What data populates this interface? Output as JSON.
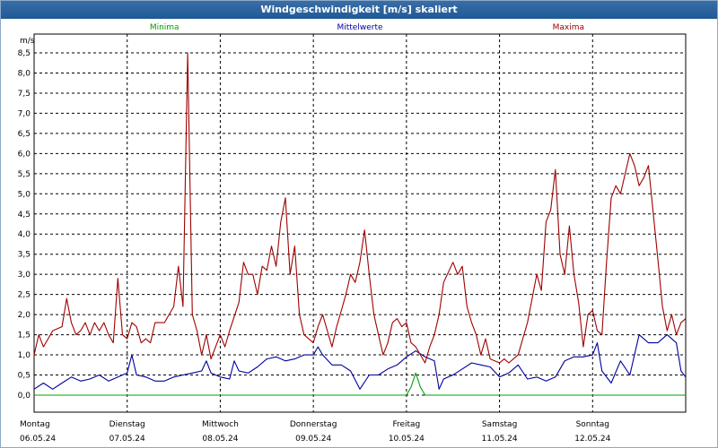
{
  "title": "Windgeschwindigkeit [m/s] skaliert",
  "chart_data": {
    "type": "line",
    "unit_label": "m/s",
    "ylim": [
      -0.2,
      8.8
    ],
    "y_ticks": [
      "0,0",
      "0,5",
      "1,0",
      "1,5",
      "2,0",
      "2,5",
      "3,0",
      "3,5",
      "4,0",
      "4,5",
      "5,0",
      "5,5",
      "6,0",
      "6,5",
      "7,0",
      "7,5",
      "8,0",
      "8,5"
    ],
    "x_days": [
      {
        "day": "Montag",
        "date": "06.05.24"
      },
      {
        "day": "Dienstag",
        "date": "07.05.24"
      },
      {
        "day": "Mittwoch",
        "date": "08.05.24"
      },
      {
        "day": "Donnerstag",
        "date": "09.05.24"
      },
      {
        "day": "Freitag",
        "date": "10.05.24"
      },
      {
        "day": "Samstag",
        "date": "11.05.24"
      },
      {
        "day": "Sonntag",
        "date": "12.05.24"
      }
    ],
    "grid": true,
    "series": [
      {
        "name": "Minima",
        "color": "#00a000",
        "points": [
          [
            0,
            0
          ],
          [
            4.0,
            0
          ],
          [
            4.05,
            0.2
          ],
          [
            4.1,
            0.55
          ],
          [
            4.15,
            0.2
          ],
          [
            4.2,
            0
          ],
          [
            7.0,
            0
          ]
        ]
      },
      {
        "name": "Mittelwerte",
        "color": "#0000a0",
        "points": [
          [
            0,
            0.15
          ],
          [
            0.1,
            0.3
          ],
          [
            0.2,
            0.15
          ],
          [
            0.3,
            0.3
          ],
          [
            0.4,
            0.45
          ],
          [
            0.5,
            0.35
          ],
          [
            0.6,
            0.4
          ],
          [
            0.7,
            0.5
          ],
          [
            0.8,
            0.35
          ],
          [
            0.9,
            0.45
          ],
          [
            1.0,
            0.55
          ],
          [
            1.05,
            1.0
          ],
          [
            1.1,
            0.5
          ],
          [
            1.2,
            0.45
          ],
          [
            1.3,
            0.35
          ],
          [
            1.4,
            0.35
          ],
          [
            1.5,
            0.45
          ],
          [
            1.6,
            0.5
          ],
          [
            1.7,
            0.55
          ],
          [
            1.8,
            0.6
          ],
          [
            1.85,
            0.85
          ],
          [
            1.9,
            0.55
          ],
          [
            2.0,
            0.45
          ],
          [
            2.1,
            0.4
          ],
          [
            2.15,
            0.85
          ],
          [
            2.2,
            0.6
          ],
          [
            2.3,
            0.55
          ],
          [
            2.4,
            0.7
          ],
          [
            2.5,
            0.9
          ],
          [
            2.6,
            0.95
          ],
          [
            2.7,
            0.85
          ],
          [
            2.8,
            0.9
          ],
          [
            2.9,
            1.0
          ],
          [
            3.0,
            1.0
          ],
          [
            3.05,
            1.2
          ],
          [
            3.1,
            1.0
          ],
          [
            3.2,
            0.75
          ],
          [
            3.3,
            0.75
          ],
          [
            3.4,
            0.6
          ],
          [
            3.5,
            0.15
          ],
          [
            3.6,
            0.5
          ],
          [
            3.7,
            0.5
          ],
          [
            3.8,
            0.65
          ],
          [
            3.9,
            0.75
          ],
          [
            4.0,
            0.95
          ],
          [
            4.1,
            1.1
          ],
          [
            4.2,
            0.95
          ],
          [
            4.3,
            0.85
          ],
          [
            4.35,
            0.15
          ],
          [
            4.4,
            0.4
          ],
          [
            4.5,
            0.5
          ],
          [
            4.6,
            0.65
          ],
          [
            4.7,
            0.8
          ],
          [
            4.8,
            0.75
          ],
          [
            4.9,
            0.7
          ],
          [
            5.0,
            0.45
          ],
          [
            5.1,
            0.55
          ],
          [
            5.2,
            0.75
          ],
          [
            5.3,
            0.4
          ],
          [
            5.4,
            0.45
          ],
          [
            5.5,
            0.35
          ],
          [
            5.6,
            0.45
          ],
          [
            5.7,
            0.85
          ],
          [
            5.8,
            0.95
          ],
          [
            5.9,
            0.95
          ],
          [
            6.0,
            1.0
          ],
          [
            6.05,
            1.3
          ],
          [
            6.1,
            0.6
          ],
          [
            6.2,
            0.3
          ],
          [
            6.3,
            0.85
          ],
          [
            6.4,
            0.5
          ],
          [
            6.5,
            1.5
          ],
          [
            6.6,
            1.3
          ],
          [
            6.7,
            1.3
          ],
          [
            6.8,
            1.5
          ],
          [
            6.9,
            1.3
          ],
          [
            6.95,
            0.6
          ],
          [
            7.0,
            0.45
          ]
        ]
      },
      {
        "name": "Maxima",
        "color": "#a00000",
        "points": [
          [
            0,
            1.0
          ],
          [
            0.05,
            1.5
          ],
          [
            0.1,
            1.2
          ],
          [
            0.15,
            1.4
          ],
          [
            0.2,
            1.6
          ],
          [
            0.3,
            1.7
          ],
          [
            0.35,
            2.4
          ],
          [
            0.4,
            1.8
          ],
          [
            0.45,
            1.5
          ],
          [
            0.5,
            1.6
          ],
          [
            0.55,
            1.8
          ],
          [
            0.6,
            1.5
          ],
          [
            0.65,
            1.8
          ],
          [
            0.7,
            1.6
          ],
          [
            0.75,
            1.8
          ],
          [
            0.8,
            1.5
          ],
          [
            0.85,
            1.3
          ],
          [
            0.9,
            2.9
          ],
          [
            0.95,
            1.5
          ],
          [
            1.0,
            1.4
          ],
          [
            1.05,
            1.8
          ],
          [
            1.1,
            1.7
          ],
          [
            1.15,
            1.3
          ],
          [
            1.2,
            1.4
          ],
          [
            1.25,
            1.3
          ],
          [
            1.3,
            1.8
          ],
          [
            1.4,
            1.8
          ],
          [
            1.5,
            2.2
          ],
          [
            1.55,
            3.2
          ],
          [
            1.6,
            2.2
          ],
          [
            1.65,
            8.5
          ],
          [
            1.7,
            2.0
          ],
          [
            1.75,
            1.6
          ],
          [
            1.8,
            1.0
          ],
          [
            1.85,
            1.5
          ],
          [
            1.9,
            0.9
          ],
          [
            1.95,
            1.2
          ],
          [
            2.0,
            1.5
          ],
          [
            2.05,
            1.2
          ],
          [
            2.1,
            1.6
          ],
          [
            2.2,
            2.3
          ],
          [
            2.25,
            3.3
          ],
          [
            2.3,
            3.0
          ],
          [
            2.35,
            3.0
          ],
          [
            2.4,
            2.5
          ],
          [
            2.45,
            3.2
          ],
          [
            2.5,
            3.1
          ],
          [
            2.55,
            3.7
          ],
          [
            2.6,
            3.2
          ],
          [
            2.65,
            4.3
          ],
          [
            2.7,
            4.9
          ],
          [
            2.75,
            3.0
          ],
          [
            2.8,
            3.7
          ],
          [
            2.85,
            2.0
          ],
          [
            2.9,
            1.5
          ],
          [
            3.0,
            1.3
          ],
          [
            3.05,
            1.7
          ],
          [
            3.1,
            2.0
          ],
          [
            3.2,
            1.2
          ],
          [
            3.25,
            1.7
          ],
          [
            3.3,
            2.1
          ],
          [
            3.35,
            2.5
          ],
          [
            3.4,
            3.0
          ],
          [
            3.45,
            2.8
          ],
          [
            3.5,
            3.3
          ],
          [
            3.55,
            4.1
          ],
          [
            3.6,
            3.0
          ],
          [
            3.65,
            2.0
          ],
          [
            3.7,
            1.5
          ],
          [
            3.75,
            1.0
          ],
          [
            3.8,
            1.3
          ],
          [
            3.85,
            1.8
          ],
          [
            3.9,
            1.9
          ],
          [
            3.95,
            1.7
          ],
          [
            4.0,
            1.8
          ],
          [
            4.05,
            1.3
          ],
          [
            4.1,
            1.2
          ],
          [
            4.2,
            0.8
          ],
          [
            4.25,
            1.2
          ],
          [
            4.3,
            1.5
          ],
          [
            4.35,
            2.0
          ],
          [
            4.4,
            2.8
          ],
          [
            4.5,
            3.3
          ],
          [
            4.55,
            3.0
          ],
          [
            4.6,
            3.2
          ],
          [
            4.65,
            2.2
          ],
          [
            4.7,
            1.8
          ],
          [
            4.75,
            1.5
          ],
          [
            4.8,
            1.0
          ],
          [
            4.85,
            1.4
          ],
          [
            4.9,
            0.9
          ],
          [
            5.0,
            0.8
          ],
          [
            5.05,
            0.9
          ],
          [
            5.1,
            0.8
          ],
          [
            5.2,
            1.0
          ],
          [
            5.3,
            1.8
          ],
          [
            5.4,
            3.0
          ],
          [
            5.45,
            2.6
          ],
          [
            5.5,
            4.3
          ],
          [
            5.55,
            4.6
          ],
          [
            5.6,
            5.6
          ],
          [
            5.65,
            3.5
          ],
          [
            5.7,
            3.0
          ],
          [
            5.75,
            4.2
          ],
          [
            5.8,
            3.0
          ],
          [
            5.85,
            2.3
          ],
          [
            5.9,
            1.2
          ],
          [
            5.95,
            2.0
          ],
          [
            6.0,
            2.1
          ],
          [
            6.05,
            1.6
          ],
          [
            6.1,
            1.5
          ],
          [
            6.15,
            3.3
          ],
          [
            6.2,
            4.9
          ],
          [
            6.25,
            5.2
          ],
          [
            6.3,
            5.0
          ],
          [
            6.35,
            5.5
          ],
          [
            6.4,
            6.0
          ],
          [
            6.45,
            5.7
          ],
          [
            6.5,
            5.2
          ],
          [
            6.55,
            5.4
          ],
          [
            6.6,
            5.7
          ],
          [
            6.7,
            3.4
          ],
          [
            6.75,
            2.2
          ],
          [
            6.8,
            1.6
          ],
          [
            6.85,
            2.0
          ],
          [
            6.9,
            1.5
          ],
          [
            6.95,
            1.8
          ],
          [
            7.0,
            1.9
          ]
        ]
      }
    ]
  }
}
